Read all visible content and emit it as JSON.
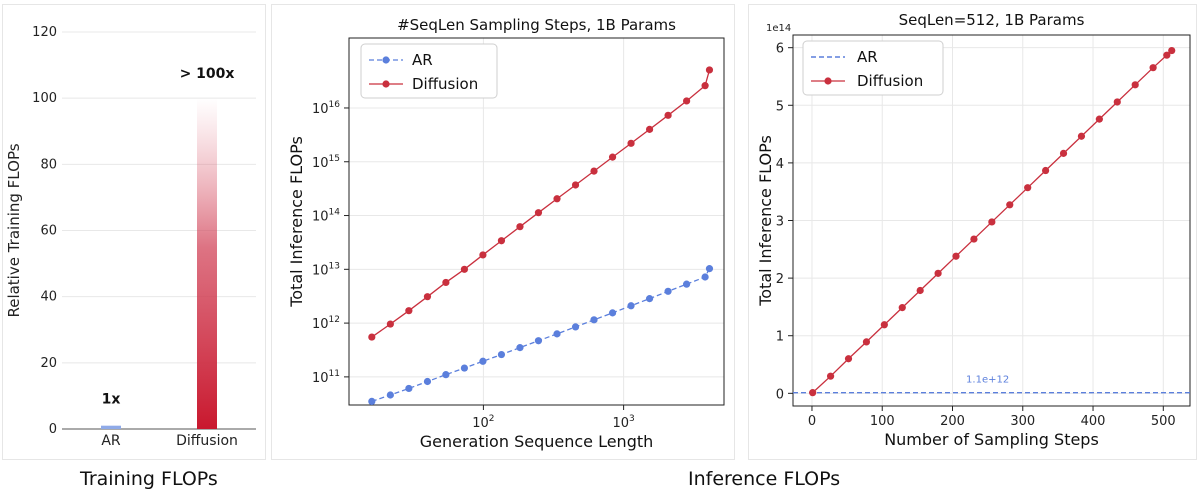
{
  "captions": {
    "training": "Training FLOPs",
    "inference": "Inference FLOPs"
  },
  "colors": {
    "ar": "#5b7fdc",
    "diffusion": "#c9303e",
    "grid": "#e8e8e8"
  },
  "chart_data": [
    {
      "id": "training",
      "type": "bar",
      "title": "",
      "xlabel": "",
      "ylabel": "Relative Training FLOPs",
      "ylim": [
        0,
        120
      ],
      "yticks": [
        0,
        20,
        40,
        60,
        80,
        100,
        120
      ],
      "ytick_labels": [
        "0",
        "20",
        "40",
        "60",
        "80",
        "100",
        "120"
      ],
      "categories": [
        "AR",
        "Diffusion"
      ],
      "values": [
        1,
        100
      ],
      "bar_labels": [
        "1x",
        "> 100x"
      ],
      "grid": true
    },
    {
      "id": "seqlen",
      "type": "line",
      "title": "#SeqLen Sampling Steps, 1B Params",
      "xlabel": "Generation Sequence Length",
      "ylabel": "Total Inference FLOPs",
      "xscale": "log",
      "yscale": "log",
      "xlim": [
        11,
        5200
      ],
      "ylim": [
        30000000000.0,
        2e+17
      ],
      "xticks": [
        100,
        1000
      ],
      "xtick_labels": [
        {
          "base": "10",
          "exp": "2"
        },
        {
          "base": "10",
          "exp": "3"
        }
      ],
      "yticks": [
        100000000000.0,
        1000000000000.0,
        10000000000000.0,
        100000000000000.0,
        1000000000000000.0,
        1e+16
      ],
      "ytick_labels": [
        {
          "base": "10",
          "exp": "11"
        },
        {
          "base": "10",
          "exp": "12"
        },
        {
          "base": "10",
          "exp": "13"
        },
        {
          "base": "10",
          "exp": "14"
        },
        {
          "base": "10",
          "exp": "15"
        },
        {
          "base": "10",
          "exp": "16"
        }
      ],
      "legend": "top-left",
      "x": [
        16,
        21.7,
        29.4,
        39.9,
        54.0,
        73.2,
        99.2,
        134.5,
        182.3,
        247,
        335,
        454,
        615,
        834,
        1130,
        1532,
        2076,
        2814,
        3813,
        4096
      ],
      "series": [
        {
          "name": "AR",
          "style": "dashed",
          "values": [
            35000000000.0,
            46000000000.0,
            61000000000.0,
            82000000000.0,
            110000000000.0,
            146000000000.0,
            195000000000.0,
            260000000000.0,
            350000000000.0,
            470000000000.0,
            630000000000.0,
            850000000000.0,
            1150000000000.0,
            1550000000000.0,
            2100000000000.0,
            2850000000000.0,
            3900000000000.0,
            5300000000000.0,
            7200000000000.0,
            10300000000000.0
          ]
        },
        {
          "name": "Diffusion",
          "style": "solid",
          "values": [
            550000000000.0,
            960000000000.0,
            1700000000000.0,
            3100000000000.0,
            5700000000000.0,
            10000000000000.0,
            18500000000000.0,
            34000000000000.0,
            62000000000000.0,
            113000000000000.0,
            205000000000000.0,
            370000000000000.0,
            670000000000000.0,
            1220000000000000.0,
            2200000000000000.0,
            4000000000000000.0,
            7300000000000000.0,
            1.35e+16,
            2.6e+16,
            5.1e+16
          ]
        }
      ],
      "grid": true
    },
    {
      "id": "steps",
      "type": "line",
      "title": "SeqLen=512, 1B Params",
      "xlabel": "Number of Sampling Steps",
      "ylabel": "Total Inference FLOPs",
      "axis_multiplier": "1e14",
      "xlim": [
        -27,
        538
      ],
      "ylim": [
        -0.22,
        6.22
      ],
      "xticks": [
        0,
        100,
        200,
        300,
        400,
        500
      ],
      "xtick_labels": [
        "0",
        "100",
        "200",
        "300",
        "400",
        "500"
      ],
      "yticks": [
        0,
        1,
        2,
        3,
        4,
        5,
        6
      ],
      "ytick_labels": [
        "0",
        "1",
        "2",
        "3",
        "4",
        "5",
        "6"
      ],
      "legend": "top-left",
      "x": [
        1,
        26.5,
        52,
        77.5,
        103,
        128.5,
        154,
        179.5,
        205,
        230.5,
        256,
        281.5,
        307,
        332.5,
        358,
        383.5,
        409,
        434.5,
        460,
        485.5,
        505,
        512
      ],
      "series": [
        {
          "name": "AR",
          "style": "dashed",
          "constant": 0.011,
          "annotation": "1.1e+12"
        },
        {
          "name": "Diffusion",
          "style": "solid",
          "values": [
            0.0116,
            0.2975,
            0.6,
            0.8925,
            1.19,
            1.4875,
            1.785,
            2.0825,
            2.38,
            2.6775,
            2.975,
            3.2725,
            3.57,
            3.8675,
            4.165,
            4.4625,
            4.76,
            5.0575,
            5.355,
            5.6525,
            5.87,
            5.95
          ]
        }
      ],
      "grid": true
    }
  ]
}
